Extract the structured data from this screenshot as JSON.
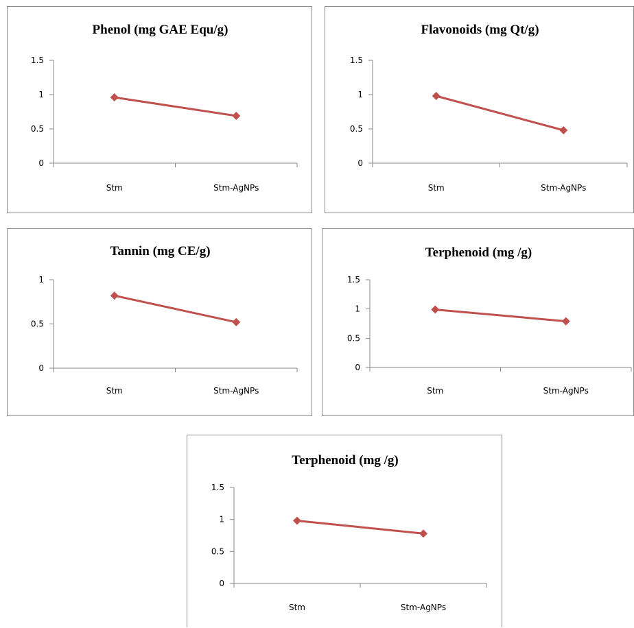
{
  "colors": {
    "series": "#c0504d",
    "axis": "#868686",
    "border": "#8c8c8c"
  },
  "chart_data": [
    {
      "type": "line",
      "title": "Phenol (mg GAE Equ/g)",
      "categories": [
        "Stm",
        "Stm-AgNPs"
      ],
      "series": [
        {
          "values": [
            0.96,
            0.69
          ]
        }
      ],
      "yticks": [
        "0",
        "0.5",
        "1",
        "1.5"
      ],
      "ylim": [
        0,
        1.5
      ],
      "grid": false,
      "legend": "none",
      "marker": "diamond"
    },
    {
      "type": "line",
      "title": "Flavonoids (mg Qt/g)",
      "categories": [
        "Stm",
        "Stm-AgNPs"
      ],
      "series": [
        {
          "values": [
            0.98,
            0.48
          ]
        }
      ],
      "yticks": [
        "0",
        "0.5",
        "1",
        "1.5"
      ],
      "ylim": [
        0,
        1.5
      ],
      "grid": false,
      "legend": "none",
      "marker": "diamond"
    },
    {
      "type": "line",
      "title": "Tannin (mg CE/g)",
      "categories": [
        "Stm",
        "Stm-AgNPs"
      ],
      "series": [
        {
          "values": [
            0.82,
            0.52
          ]
        }
      ],
      "yticks": [
        "0",
        "0.5",
        "1"
      ],
      "ylim": [
        0,
        1
      ],
      "grid": false,
      "legend": "none",
      "marker": "diamond"
    },
    {
      "type": "line",
      "title": "Terphenoid (mg /g)",
      "categories": [
        "Stm",
        "Stm-AgNPs"
      ],
      "series": [
        {
          "values": [
            0.99,
            0.79
          ]
        }
      ],
      "yticks": [
        "0",
        "0.5",
        "1",
        "1.5"
      ],
      "ylim": [
        0,
        1.5
      ],
      "grid": false,
      "legend": "none",
      "marker": "diamond"
    },
    {
      "type": "line",
      "title": "Terphenoid (mg /g)",
      "categories": [
        "Stm",
        "Stm-AgNPs"
      ],
      "series": [
        {
          "values": [
            0.98,
            0.78
          ]
        }
      ],
      "yticks": [
        "0",
        "0.5",
        "1",
        "1.5"
      ],
      "ylim": [
        0,
        1.5
      ],
      "grid": false,
      "legend": "none",
      "marker": "diamond"
    }
  ]
}
